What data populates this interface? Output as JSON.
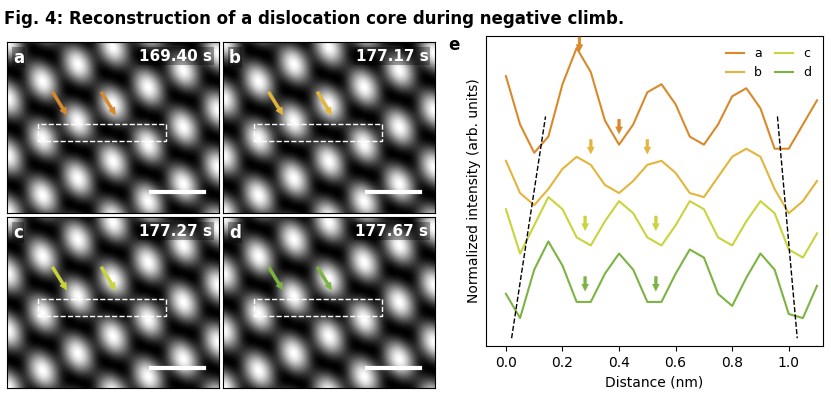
{
  "figure_title": "Fig. 4: Reconstruction of a dislocation core during negative climb.",
  "panels": [
    {
      "label": "a",
      "time": "169.40 s",
      "color": "#d9892a"
    },
    {
      "label": "b",
      "time": "177.17 s",
      "color": "#e3b53a"
    },
    {
      "label": "c",
      "time": "177.27 s",
      "color": "#c9d43c"
    },
    {
      "label": "d",
      "time": "177.67 s",
      "color": "#7cb342"
    }
  ],
  "chart_data": {
    "type": "line",
    "panel_label": "e",
    "x_label": "Distance (nm)",
    "y_label": "Normalized intensity (arb. units)",
    "x": [
      0.0,
      0.05,
      0.1,
      0.15,
      0.2,
      0.25,
      0.3,
      0.35,
      0.4,
      0.45,
      0.5,
      0.55,
      0.6,
      0.65,
      0.7,
      0.75,
      0.8,
      0.85,
      0.9,
      0.95,
      1.0,
      1.05,
      1.1
    ],
    "series": [
      {
        "name": "a",
        "color": "#d9892a",
        "values": [
          3.95,
          3.35,
          3.0,
          3.2,
          3.85,
          4.3,
          4.0,
          3.4,
          3.1,
          3.35,
          3.75,
          3.85,
          3.6,
          3.2,
          3.1,
          3.35,
          3.7,
          3.8,
          3.55,
          3.05,
          3.05,
          3.35,
          3.65
        ],
        "arrows": [
          {
            "x": 0.26,
            "y": 4.22
          },
          {
            "x": 0.4,
            "y": 3.2
          }
        ]
      },
      {
        "name": "b",
        "color": "#e3b53a",
        "values": [
          2.9,
          2.5,
          2.35,
          2.55,
          2.8,
          2.95,
          2.85,
          2.6,
          2.5,
          2.65,
          2.85,
          2.9,
          2.75,
          2.5,
          2.45,
          2.7,
          2.95,
          3.05,
          2.95,
          2.55,
          2.25,
          2.4,
          2.65
        ],
        "arrows": [
          {
            "x": 0.3,
            "y": 2.95
          },
          {
            "x": 0.5,
            "y": 2.95
          }
        ]
      },
      {
        "name": "c",
        "color": "#c9d43c",
        "values": [
          2.3,
          1.75,
          2.1,
          2.45,
          2.3,
          1.95,
          1.85,
          2.15,
          2.4,
          2.25,
          1.95,
          1.85,
          2.1,
          2.4,
          2.3,
          1.95,
          1.85,
          2.15,
          2.4,
          2.25,
          1.8,
          1.7,
          2.0
        ],
        "arrows": [
          {
            "x": 0.28,
            "y": 2.0
          },
          {
            "x": 0.53,
            "y": 2.0
          }
        ]
      },
      {
        "name": "d",
        "color": "#7cb342",
        "values": [
          1.25,
          0.95,
          1.55,
          1.9,
          1.6,
          1.15,
          1.15,
          1.5,
          1.75,
          1.55,
          1.15,
          1.15,
          1.5,
          1.8,
          1.7,
          1.25,
          1.1,
          1.45,
          1.75,
          1.55,
          1.0,
          0.95,
          1.35
        ],
        "arrows": [
          {
            "x": 0.28,
            "y": 1.25
          },
          {
            "x": 0.53,
            "y": 1.25
          }
        ]
      }
    ],
    "dashed_lines": [
      {
        "x": [
          0.02,
          0.14
        ],
        "y": [
          0.7,
          3.45
        ]
      },
      {
        "x": [
          0.96,
          1.03
        ],
        "y": [
          3.45,
          0.7
        ]
      }
    ],
    "xlim": [
      -0.07,
      1.12
    ],
    "ylim": [
      0.6,
      4.45
    ],
    "xticks": [
      {
        "value": 0.0,
        "label": "0.0"
      },
      {
        "value": 0.2,
        "label": "0.2"
      },
      {
        "value": 0.4,
        "label": "0.4"
      },
      {
        "value": 0.6,
        "label": "0.6"
      },
      {
        "value": 0.8,
        "label": "0.8"
      },
      {
        "value": 1.0,
        "label": "1.0"
      }
    ],
    "yticks": [],
    "tick_labels": "x",
    "legend": "upper right",
    "grid": false
  }
}
